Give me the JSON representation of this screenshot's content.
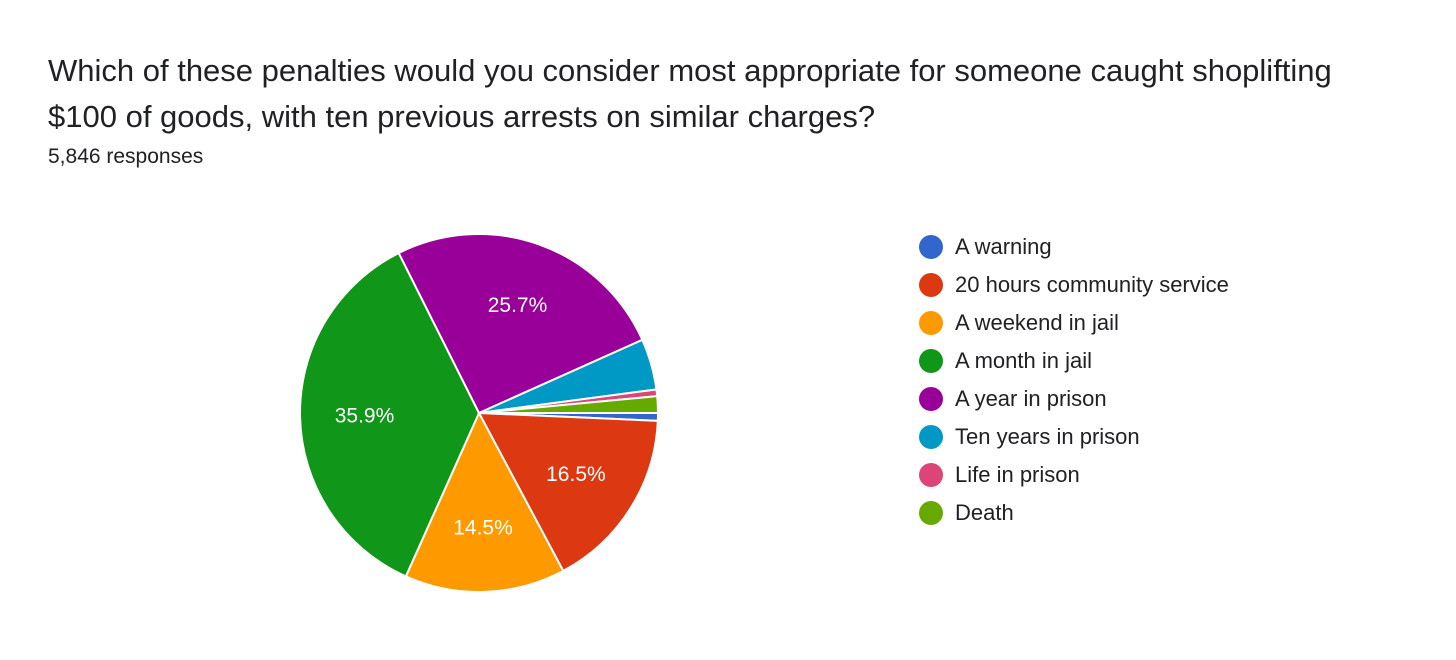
{
  "question": "Which of these penalties would you consider most appropriate for someone caught shoplifting $100 of goods, with ten previous arrests on similar charges?",
  "responses": "5,846 responses",
  "chart_data": {
    "type": "pie",
    "labels": [
      "A warning",
      "20 hours community service",
      "A weekend in jail",
      "A month in jail",
      "A year in prison",
      "Ten years in prison",
      "Life in prison",
      "Death"
    ],
    "values": [
      0.7,
      16.5,
      14.5,
      35.9,
      25.7,
      4.6,
      0.6,
      1.5
    ],
    "colors": [
      "#3366cc",
      "#dc3912",
      "#ff9900",
      "#109618",
      "#990099",
      "#0099c6",
      "#dd4477",
      "#66aa00"
    ],
    "data_labels": [
      "",
      "16.5%",
      "14.5%",
      "35.9%",
      "25.7%",
      "",
      "",
      ""
    ],
    "start": "three o'clock, clockwise",
    "legend_position": "right"
  }
}
